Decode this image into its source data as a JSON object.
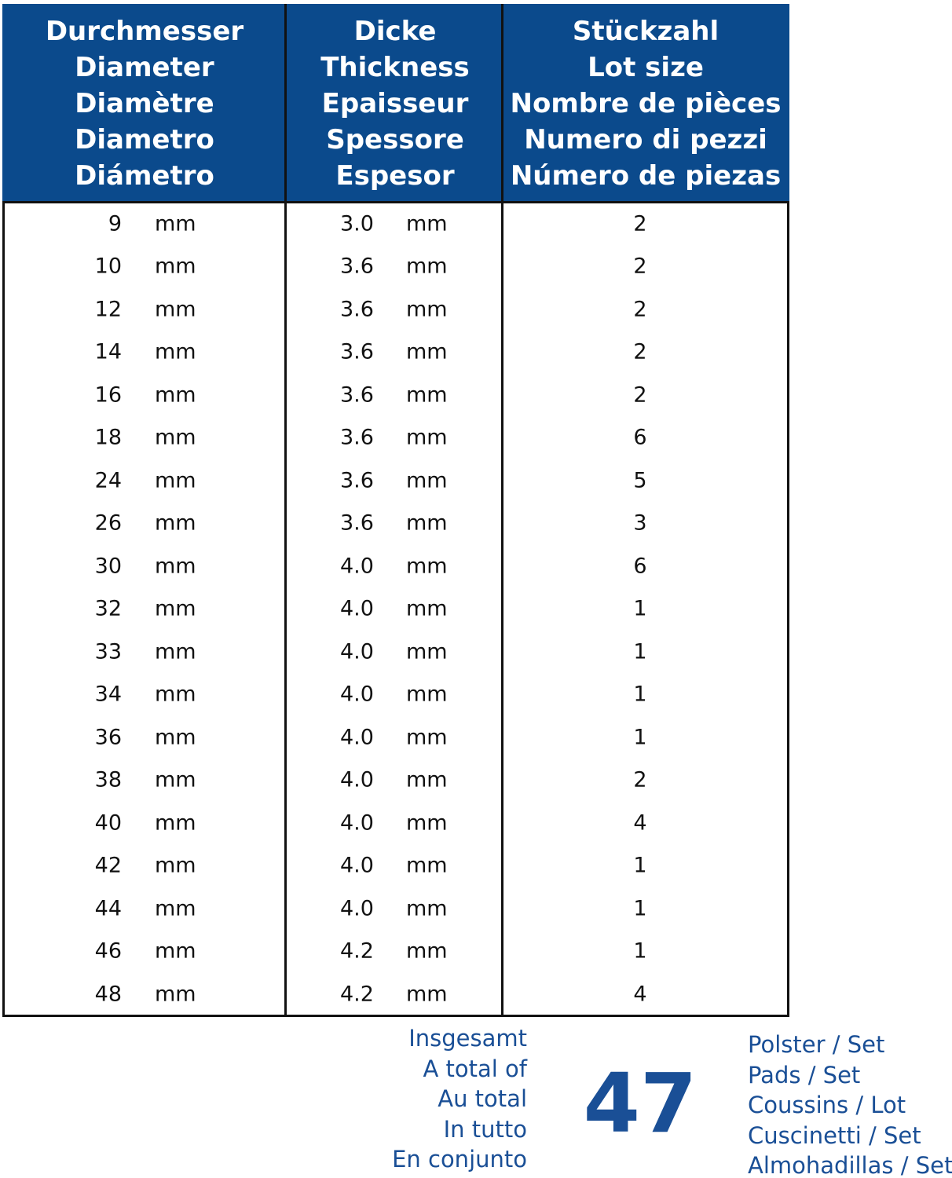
{
  "table": {
    "headers": [
      [
        "Durchmesser",
        "Diameter",
        "Diamètre",
        "Diametro",
        "Diámetro"
      ],
      [
        "Dicke",
        "Thickness",
        "Epaisseur",
        "Spessore",
        "Espesor"
      ],
      [
        "Stückzahl",
        "Lot size",
        "Nombre de pièces",
        "Numero di pezzi",
        "Número de piezas"
      ]
    ],
    "rows": [
      [
        "9",
        "mm",
        "3.0",
        "mm",
        "2"
      ],
      [
        "10",
        "mm",
        "3.6",
        "mm",
        "2"
      ],
      [
        "12",
        "mm",
        "3.6",
        "mm",
        "2"
      ],
      [
        "14",
        "mm",
        "3.6",
        "mm",
        "2"
      ],
      [
        "16",
        "mm",
        "3.6",
        "mm",
        "2"
      ],
      [
        "18",
        "mm",
        "3.6",
        "mm",
        "6"
      ],
      [
        "24",
        "mm",
        "3.6",
        "mm",
        "5"
      ],
      [
        "26",
        "mm",
        "3.6",
        "mm",
        "3"
      ],
      [
        "30",
        "mm",
        "4.0",
        "mm",
        "6"
      ],
      [
        "32",
        "mm",
        "4.0",
        "mm",
        "1"
      ],
      [
        "33",
        "mm",
        "4.0",
        "mm",
        "1"
      ],
      [
        "34",
        "mm",
        "4.0",
        "mm",
        "1"
      ],
      [
        "36",
        "mm",
        "4.0",
        "mm",
        "1"
      ],
      [
        "38",
        "mm",
        "4.0",
        "mm",
        "2"
      ],
      [
        "40",
        "mm",
        "4.0",
        "mm",
        "4"
      ],
      [
        "42",
        "mm",
        "4.0",
        "mm",
        "1"
      ],
      [
        "44",
        "mm",
        "4.0",
        "mm",
        "1"
      ],
      [
        "46",
        "mm",
        "4.2",
        "mm",
        "1"
      ],
      [
        "48",
        "mm",
        "4.2",
        "mm",
        "4"
      ]
    ]
  },
  "footer": {
    "total_labels": [
      "Insgesamt",
      "A total of",
      "Au total",
      "In tutto",
      "En conjunto"
    ],
    "total": "47",
    "unit_labels": [
      "Polster / Set",
      "Pads / Set",
      "Coussins / Lot",
      "Cuscinetti / Set",
      "Almohadillas / Set"
    ]
  }
}
